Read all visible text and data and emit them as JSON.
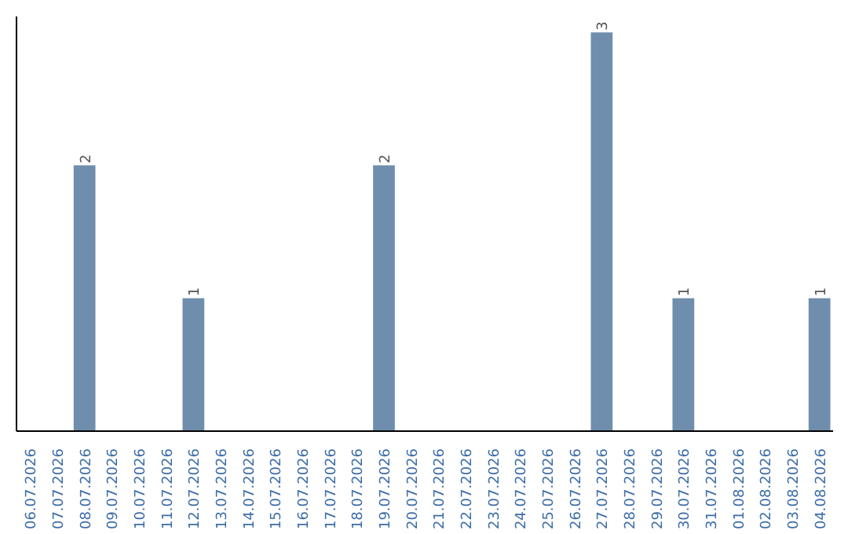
{
  "chart_data": {
    "type": "bar",
    "categories": [
      "06.07.2026",
      "07.07.2026",
      "08.07.2026",
      "09.07.2026",
      "10.07.2026",
      "11.07.2026",
      "12.07.2026",
      "13.07.2026",
      "14.07.2026",
      "15.07.2026",
      "16.07.2026",
      "17.07.2026",
      "18.07.2026",
      "19.07.2026",
      "20.07.2026",
      "21.07.2026",
      "22.07.2026",
      "23.07.2026",
      "24.07.2026",
      "25.07.2026",
      "26.07.2026",
      "27.07.2026",
      "28.07.2026",
      "29.07.2026",
      "30.07.2026",
      "31.07.2026",
      "01.08.2026",
      "02.08.2026",
      "03.08.2026",
      "04.08.2026"
    ],
    "values": [
      0,
      0,
      2,
      0,
      0,
      0,
      1,
      0,
      0,
      0,
      0,
      0,
      0,
      2,
      0,
      0,
      0,
      0,
      0,
      0,
      0,
      3,
      0,
      0,
      1,
      0,
      0,
      0,
      0,
      1
    ],
    "value_labels": [
      null,
      null,
      "2",
      null,
      null,
      null,
      "1",
      null,
      null,
      null,
      null,
      null,
      null,
      "2",
      null,
      null,
      null,
      null,
      null,
      null,
      null,
      "3",
      null,
      null,
      "1",
      null,
      null,
      null,
      null,
      "1"
    ],
    "color": "#6f8eae",
    "grid": false
  }
}
